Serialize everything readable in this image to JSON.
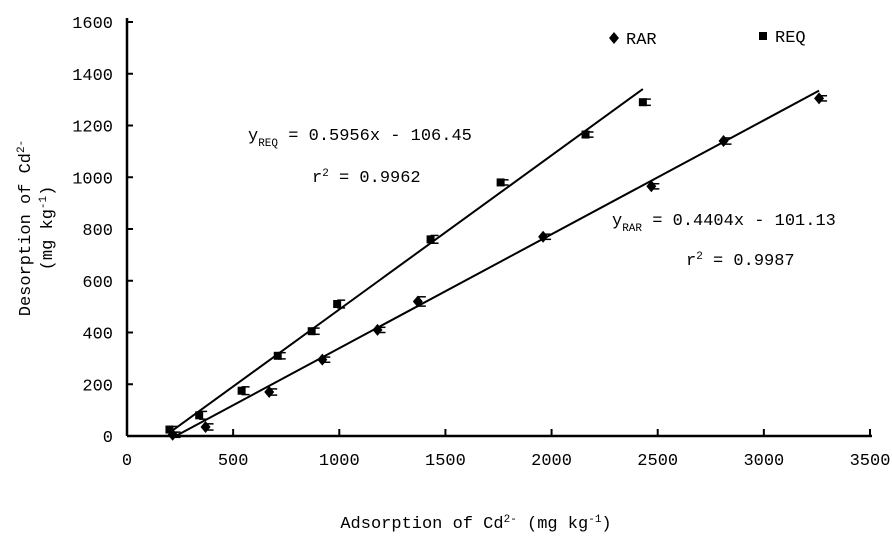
{
  "chart_data": {
    "type": "scatter",
    "xlabel": [
      {
        "text": "Adsorption of Cd"
      },
      {
        "sup": "2-"
      },
      {
        "text": " (mg kg"
      },
      {
        "sup": "-1"
      },
      {
        "text": ")"
      }
    ],
    "ylabel": [
      [
        {
          "text": "Desorption of Cd"
        },
        {
          "sup": "2-"
        }
      ],
      [
        {
          "text": "(mg kg"
        },
        {
          "sup": "-1"
        },
        {
          "text": ")"
        }
      ]
    ],
    "xlim": [
      0,
      3500
    ],
    "ylim": [
      0,
      1600
    ],
    "xticks": [
      0,
      500,
      1000,
      1500,
      2000,
      2500,
      3000,
      3500
    ],
    "yticks": [
      0,
      200,
      400,
      600,
      800,
      1000,
      1200,
      1400,
      1600
    ],
    "legend": "top-right",
    "series": [
      {
        "name": "RAR",
        "marker": "diamond",
        "color": "#000000",
        "x": [
          215,
          370,
          670,
          920,
          1180,
          1370,
          1960,
          2470,
          2810,
          3260
        ],
        "values": [
          5,
          35,
          170,
          295,
          410,
          520,
          770,
          965,
          1140,
          1305
        ],
        "errors": [
          10,
          12,
          12,
          10,
          10,
          18,
          10,
          10,
          12,
          10
        ],
        "trendline": {
          "slope": 0.4404,
          "intercept": -101.13
        }
      },
      {
        "name": "REQ",
        "marker": "square",
        "color": "#000000",
        "x": [
          200,
          340,
          540,
          710,
          870,
          990,
          1430,
          1760,
          2160,
          2430
        ],
        "values": [
          25,
          80,
          175,
          310,
          405,
          510,
          760,
          980,
          1165,
          1290
        ],
        "errors": [
          12,
          15,
          15,
          12,
          12,
          15,
          15,
          10,
          10,
          12
        ],
        "trendline": {
          "slope": 0.5956,
          "intercept": -106.45
        }
      }
    ],
    "annotations": [
      [
        {
          "text": "y"
        },
        {
          "sub": "REQ"
        },
        {
          "text": " = 0.5956x - 106.45"
        }
      ],
      [
        {
          "text": "r"
        },
        {
          "sup": "2"
        },
        {
          "text": " = 0.9962"
        }
      ],
      [
        {
          "text": "y"
        },
        {
          "sub": "RAR"
        },
        {
          "text": " = 0.4404x - 101.13"
        }
      ],
      [
        {
          "text": "r"
        },
        {
          "sup": "2"
        },
        {
          "text": " = 0.9987"
        }
      ]
    ]
  }
}
